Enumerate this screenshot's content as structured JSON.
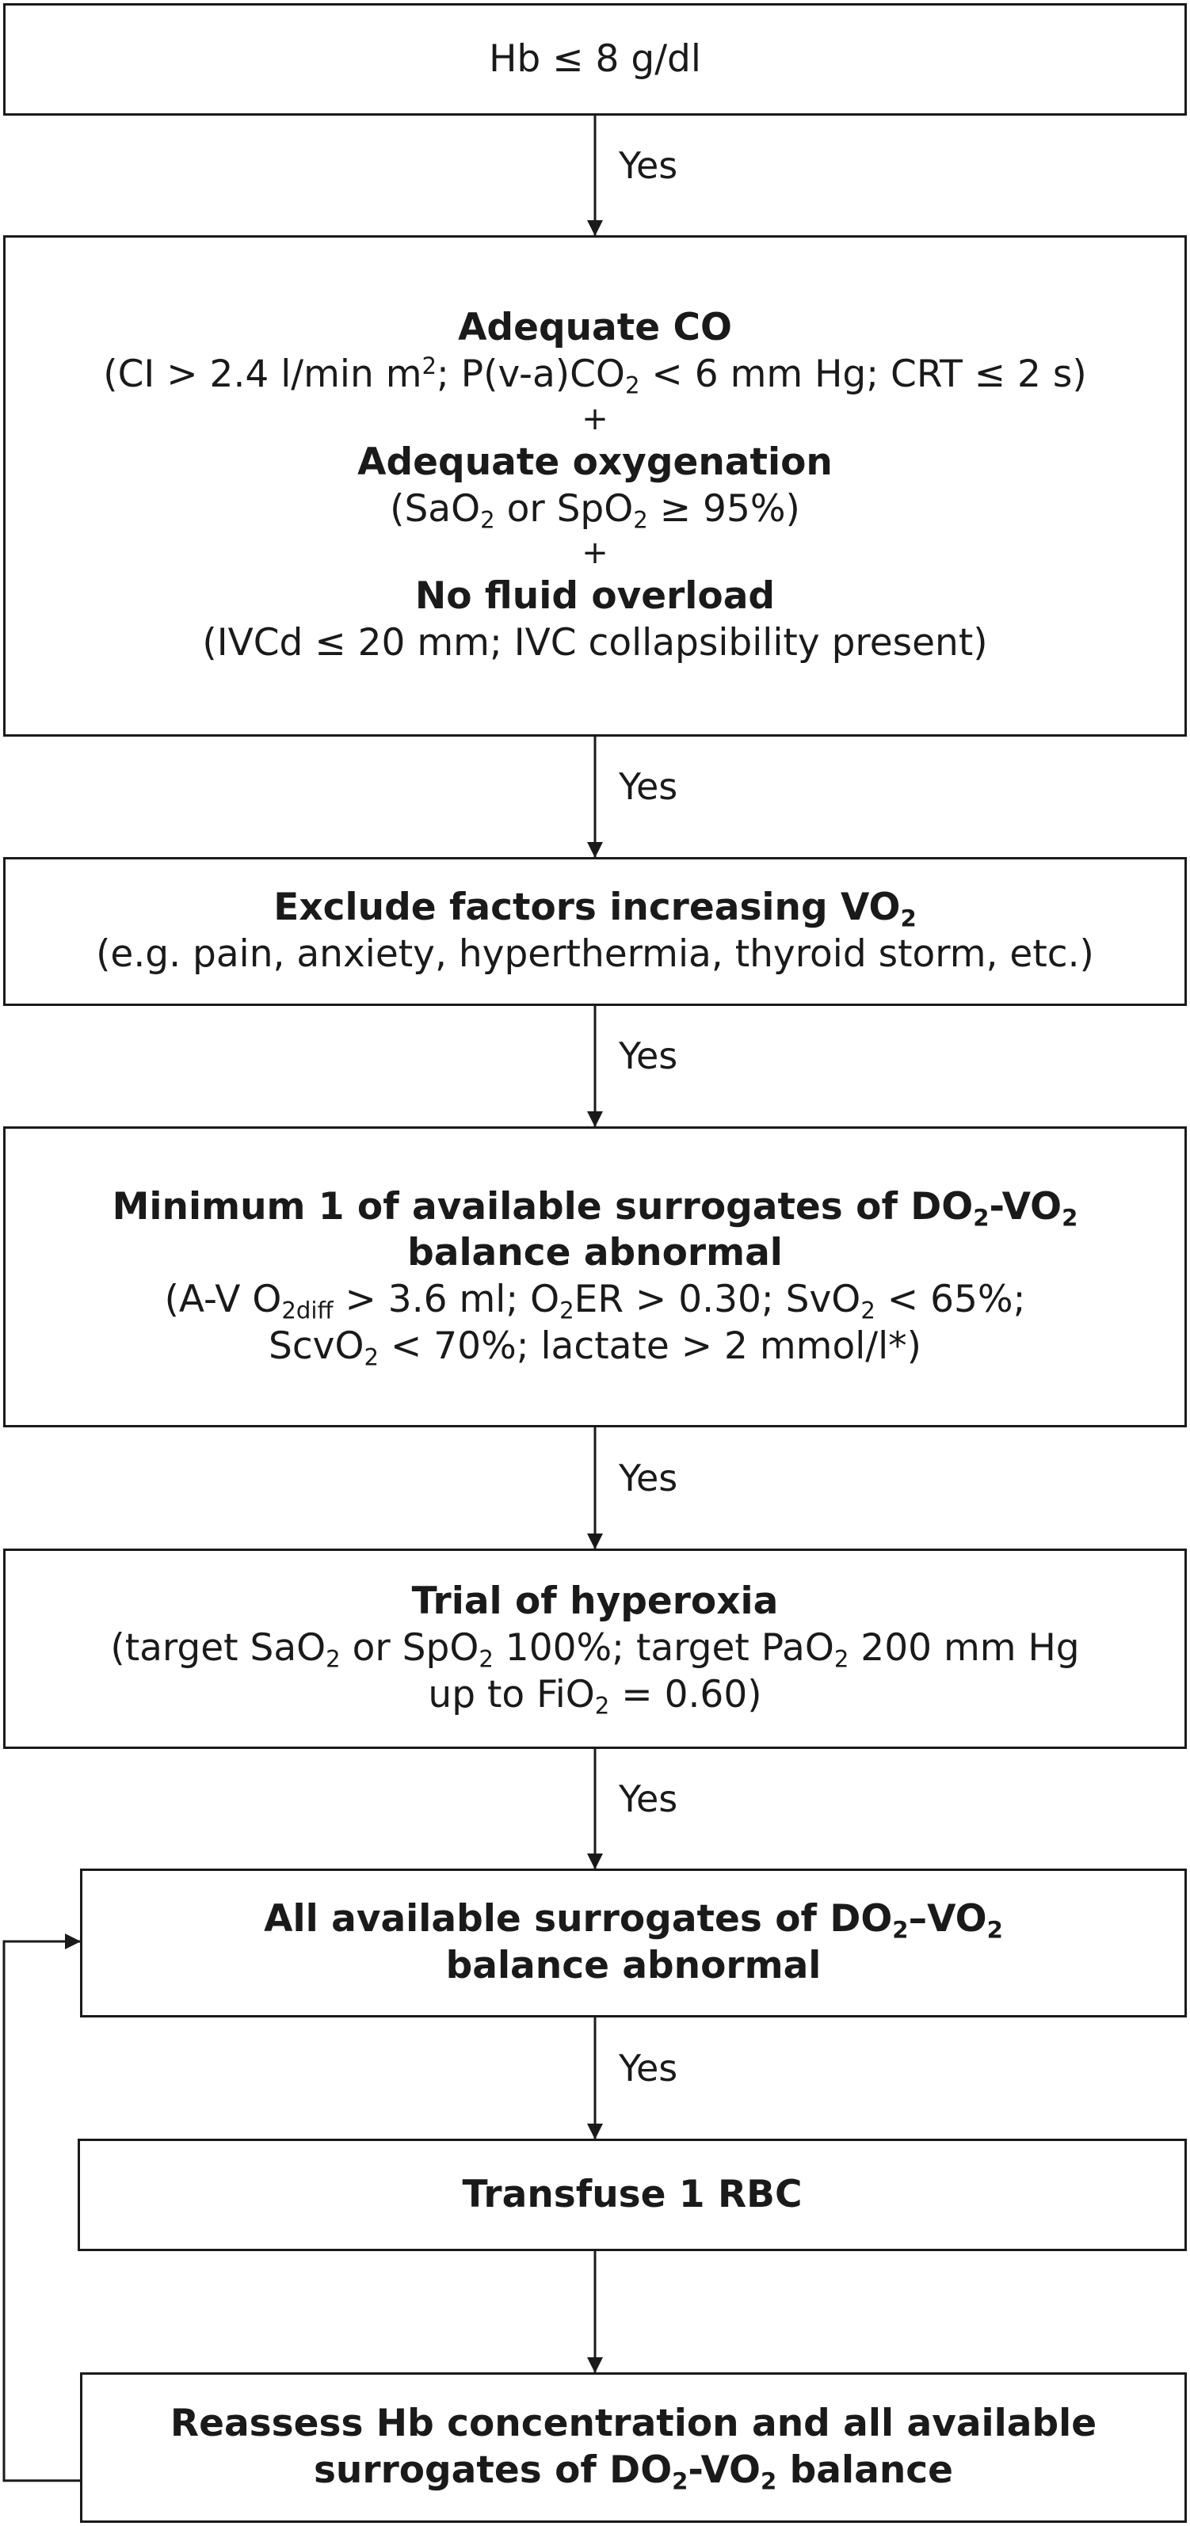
{
  "boxes": [
    {
      "id": "b1",
      "lines": [
        {
          "weight": "reg",
          "text": "Hb ≤ 8 g/dl"
        }
      ]
    },
    {
      "id": "b2",
      "lines": [
        {
          "weight": "bold",
          "text": "Adequate CO"
        },
        {
          "weight": "reg",
          "text": "(CI > 2.4 l/min m^{2}; P(v-a)CO_{2} < 6 mm Hg; CRT ≤ 2 s)"
        },
        {
          "weight": "plus",
          "text": "+"
        },
        {
          "weight": "bold",
          "text": "Adequate oxygenation"
        },
        {
          "weight": "reg",
          "text": "(SaO_{2} or SpO_{2} ≥ 95%)"
        },
        {
          "weight": "plus",
          "text": "+"
        },
        {
          "weight": "bold",
          "text": "No fluid overload"
        },
        {
          "weight": "reg",
          "text": "(IVCd ≤ 20 mm; IVC collapsibility present)"
        }
      ]
    },
    {
      "id": "b3",
      "lines": [
        {
          "weight": "bold",
          "text": "Exclude factors increasing VO_{2}"
        },
        {
          "weight": "reg",
          "text": "(e.g. pain, anxiety, hyperthermia, thyroid storm, etc.)"
        }
      ]
    },
    {
      "id": "b4",
      "lines": [
        {
          "weight": "bold",
          "text": "Minimum 1 of available surrogates of DO_{2}-VO_{2}"
        },
        {
          "weight": "bold",
          "text": "balance abnormal"
        },
        {
          "weight": "reg",
          "text": "(A-V O_{2diff} > 3.6 ml; O_{2}ER > 0.30; SvO_{2} < 65%;"
        },
        {
          "weight": "reg",
          "text": "ScvO_{2} < 70%; lactate > 2 mmol/l*)"
        }
      ]
    },
    {
      "id": "b5",
      "lines": [
        {
          "weight": "bold",
          "text": "Trial of hyperoxia"
        },
        {
          "weight": "reg",
          "text": "(target SaO_{2} or SpO_{2} 100%; target PaO_{2} 200 mm Hg"
        },
        {
          "weight": "reg",
          "text": "up to FiO_{2} = 0.60)"
        }
      ]
    },
    {
      "id": "b6",
      "lines": [
        {
          "weight": "bold",
          "text": "All available surrogates of DO_{2}–VO_{2}"
        },
        {
          "weight": "bold",
          "text": "balance abnormal"
        }
      ]
    },
    {
      "id": "b7",
      "lines": [
        {
          "weight": "bold",
          "text": "Transfuse 1 RBC"
        }
      ]
    },
    {
      "id": "b8",
      "lines": [
        {
          "weight": "bold",
          "text": "Reassess Hb concentration and all available"
        },
        {
          "weight": "bold",
          "text": "surrogates of DO_{2}-VO_{2} balance"
        }
      ]
    }
  ],
  "edges": [
    {
      "from": "b1",
      "to": "b2",
      "label": "Yes"
    },
    {
      "from": "b2",
      "to": "b3",
      "label": "Yes"
    },
    {
      "from": "b3",
      "to": "b4",
      "label": "Yes"
    },
    {
      "from": "b4",
      "to": "b5",
      "label": "Yes"
    },
    {
      "from": "b5",
      "to": "b6",
      "label": "Yes"
    },
    {
      "from": "b6",
      "to": "b7",
      "label": "Yes"
    },
    {
      "from": "b7",
      "to": "b8",
      "label": ""
    },
    {
      "from": "b8",
      "to": "b6",
      "label": "",
      "route": "loop-left"
    }
  ]
}
